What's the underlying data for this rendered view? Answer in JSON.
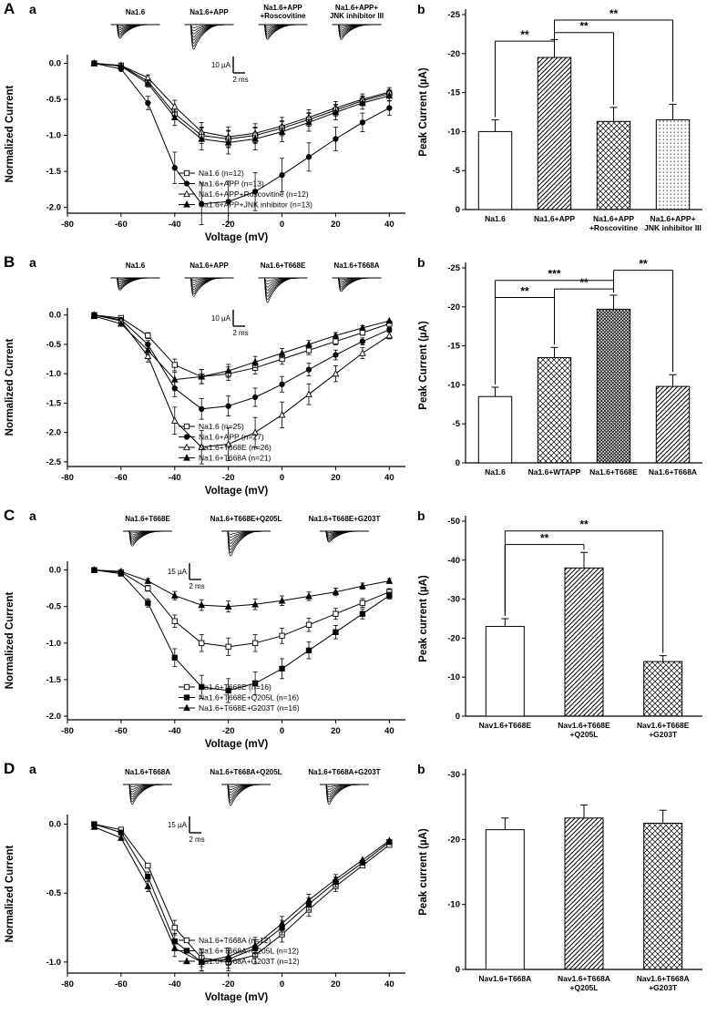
{
  "panels": [
    {
      "label": "A",
      "a_label": "a",
      "b_label": "b"
    },
    {
      "label": "B",
      "a_label": "a",
      "b_label": "b"
    },
    {
      "label": "C",
      "a_label": "a",
      "b_label": "b"
    },
    {
      "label": "D",
      "a_label": "a",
      "b_label": "b"
    }
  ],
  "chart_data": [
    {
      "panel": "A",
      "sub": "a",
      "type": "line",
      "xlabel": "Voltage (mV)",
      "ylabel": "Normalized Current",
      "xlim": [
        -80,
        46
      ],
      "ylim": [
        -2.08,
        0.12
      ],
      "xticks": [
        -80,
        -60,
        -40,
        -20,
        0,
        20,
        40
      ],
      "yticks": [
        0.0,
        -0.5,
        -1.0,
        -1.5,
        -2.0
      ],
      "x": [
        -70,
        -60,
        -50,
        -40,
        -30,
        -20,
        -10,
        0,
        10,
        20,
        30,
        40
      ],
      "series": [
        {
          "name": "Na1.6 (n=12)",
          "marker": "open-square",
          "efrac": 0.1,
          "y": [
            0,
            -0.03,
            -0.25,
            -0.7,
            -1.0,
            -1.05,
            -1.0,
            -0.9,
            -0.78,
            -0.65,
            -0.52,
            -0.42
          ]
        },
        {
          "name": "Na1.6+APP (n=13)",
          "marker": "filled-circle",
          "efrac": 0.14,
          "y": [
            0,
            -0.08,
            -0.55,
            -1.45,
            -1.95,
            -1.92,
            -1.78,
            -1.55,
            -1.3,
            -1.05,
            -0.82,
            -0.62
          ]
        },
        {
          "name": "Na1.6+APP+Roscovitine (n=12)",
          "marker": "open-triangle",
          "efrac": 0.12,
          "y": [
            0,
            -0.03,
            -0.2,
            -0.6,
            -0.95,
            -1.02,
            -0.97,
            -0.87,
            -0.75,
            -0.62,
            -0.5,
            -0.4
          ]
        },
        {
          "name": "Na1.6+APP+JNK inhibitor (n=13)",
          "marker": "filled-triangle",
          "efrac": 0.13,
          "y": [
            0,
            -0.04,
            -0.28,
            -0.75,
            -1.05,
            -1.1,
            -1.05,
            -0.95,
            -0.82,
            -0.68,
            -0.55,
            -0.45
          ]
        }
      ],
      "insets": [
        {
          "label": "Na1.6",
          "amp": 0.55
        },
        {
          "label": "Na1.6+APP",
          "amp": 1.0
        },
        {
          "label": "Na1.6+APP\n+Roscovitine",
          "amp": 0.6
        },
        {
          "label": "Na1.6+APP+\nJNK inhibitor III",
          "amp": 0.6
        }
      ],
      "scalebar": {
        "v": "10 µA",
        "h": "2 ms"
      }
    },
    {
      "panel": "A",
      "sub": "b",
      "type": "bar",
      "ylabel": "Peak Current (µA)",
      "ylim": [
        0,
        -25
      ],
      "yticks": [
        -25,
        -20,
        -15,
        -10,
        -5,
        0
      ],
      "categories": [
        "Na1.6",
        "Na1.6+APP",
        "Na1.6+APP\n+Roscovitine",
        "Na1.6+APP+\nJNK inhibitor III"
      ],
      "values": [
        -10.0,
        -19.5,
        -11.3,
        -11.5
      ],
      "errors": [
        1.5,
        2.3,
        1.8,
        2.0
      ],
      "fills": [
        "white",
        "diag",
        "cross",
        "dots"
      ],
      "sig": [
        {
          "a": 0,
          "b": 1,
          "y": -21.6,
          "label": "**"
        },
        {
          "a": 1,
          "b": 2,
          "y": -22.7,
          "label": "**"
        },
        {
          "a": 1,
          "b": 3,
          "y": -24.3,
          "label": "**"
        }
      ]
    },
    {
      "panel": "B",
      "sub": "a",
      "type": "line",
      "xlabel": "Voltage (mV)",
      "ylabel": "Normalized Current",
      "xlim": [
        -80,
        46
      ],
      "ylim": [
        -2.58,
        0.12
      ],
      "xticks": [
        -80,
        -60,
        -40,
        -20,
        0,
        20,
        40
      ],
      "yticks": [
        0.0,
        -0.5,
        -1.0,
        -1.5,
        -2.0,
        -2.5
      ],
      "x": [
        -70,
        -60,
        -50,
        -40,
        -30,
        -20,
        -10,
        0,
        10,
        20,
        30,
        40
      ],
      "series": [
        {
          "name": "Na1.6 (n=25)",
          "marker": "open-square",
          "efrac": 0.1,
          "y": [
            0,
            -0.05,
            -0.35,
            -0.85,
            -1.05,
            -1.0,
            -0.9,
            -0.75,
            -0.6,
            -0.45,
            -0.3,
            -0.15
          ]
        },
        {
          "name": "Na1.6+APP (n=27)",
          "marker": "filled-circle",
          "efrac": 0.1,
          "y": [
            0,
            -0.08,
            -0.5,
            -1.25,
            -1.6,
            -1.55,
            -1.4,
            -1.18,
            -0.93,
            -0.68,
            -0.45,
            -0.25
          ]
        },
        {
          "name": "Na1.6+T668E (n=26)",
          "marker": "open-triangle",
          "efrac": 0.12,
          "y": [
            0,
            -0.1,
            -0.7,
            -1.8,
            -2.25,
            -2.2,
            -2.0,
            -1.7,
            -1.35,
            -1.0,
            -0.65,
            -0.35
          ]
        },
        {
          "name": "Na1.6+T668A (n=21)",
          "marker": "filled-triangle",
          "efrac": 0.1,
          "y": [
            -0.02,
            -0.15,
            -0.6,
            -1.1,
            -1.05,
            -0.95,
            -0.8,
            -0.65,
            -0.5,
            -0.35,
            -0.22,
            -0.1
          ]
        }
      ],
      "insets": [
        {
          "label": "Na1.6",
          "amp": 0.5
        },
        {
          "label": "Na1.6+APP",
          "amp": 0.75
        },
        {
          "label": "Na1.6+T668E",
          "amp": 1.0
        },
        {
          "label": "Na1.6+T668A",
          "amp": 0.55
        }
      ],
      "scalebar": {
        "v": "10 µA",
        "h": "2 ms"
      }
    },
    {
      "panel": "B",
      "sub": "b",
      "type": "bar",
      "ylabel": "Peak Current (µA)",
      "ylim": [
        0,
        -25
      ],
      "yticks": [
        -25,
        -20,
        -15,
        -10,
        -5,
        0
      ],
      "categories": [
        "Na1.6",
        "Na1.6+WTAPP",
        "Na1.6+T668E",
        "Na1.6+T668A"
      ],
      "values": [
        -8.5,
        -13.5,
        -19.7,
        -9.8
      ],
      "errors": [
        1.2,
        1.3,
        1.8,
        1.5
      ],
      "fills": [
        "white",
        "cross",
        "dense",
        "diag"
      ],
      "sig": [
        {
          "a": 0,
          "b": 1,
          "y": -21.2,
          "label": "**"
        },
        {
          "a": 1,
          "b": 2,
          "y": -22.3,
          "label": "**"
        },
        {
          "a": 0,
          "b": 2,
          "y": -23.4,
          "label": "***"
        },
        {
          "a": 2,
          "b": 3,
          "y": -24.7,
          "label": "**"
        }
      ]
    },
    {
      "panel": "C",
      "sub": "a",
      "type": "line",
      "xlabel": "Voltage (mV)",
      "ylabel": "Normalized Current",
      "xlim": [
        -80,
        46
      ],
      "ylim": [
        -2.05,
        0.12
      ],
      "xticks": [
        -80,
        -60,
        -40,
        -20,
        0,
        20,
        40
      ],
      "yticks": [
        0.0,
        -0.5,
        -1.0,
        -1.5,
        -2.0
      ],
      "x": [
        -70,
        -60,
        -50,
        -40,
        -30,
        -20,
        -10,
        0,
        10,
        20,
        30,
        40
      ],
      "series": [
        {
          "name": "Na1.6+T668E (n=16)",
          "marker": "open-square",
          "efrac": 0.1,
          "y": [
            0,
            -0.03,
            -0.25,
            -0.7,
            -1.0,
            -1.05,
            -1.0,
            -0.9,
            -0.75,
            -0.6,
            -0.45,
            -0.3
          ]
        },
        {
          "name": "Na1.6+T668E+Q205L (n=16)",
          "marker": "filled-square",
          "efrac": 0.09,
          "y": [
            0,
            -0.05,
            -0.45,
            -1.2,
            -1.6,
            -1.65,
            -1.55,
            -1.35,
            -1.1,
            -0.85,
            -0.6,
            -0.35
          ]
        },
        {
          "name": "Na1.6+T668E+G203T (n=16)",
          "marker": "filled-triangle",
          "efrac": 0.12,
          "y": [
            0,
            -0.02,
            -0.15,
            -0.35,
            -0.48,
            -0.5,
            -0.47,
            -0.42,
            -0.36,
            -0.3,
            -0.22,
            -0.15
          ]
        }
      ],
      "insets": [
        {
          "label": "Na1.6+T668E",
          "amp": 0.6
        },
        {
          "label": "Na1.6+T668E+Q205L",
          "amp": 1.0
        },
        {
          "label": "Na1.6+T668E+G203T",
          "amp": 0.45
        }
      ],
      "scalebar": {
        "v": "15 µA",
        "h": "2 ms"
      }
    },
    {
      "panel": "C",
      "sub": "b",
      "type": "bar",
      "ylabel": "Peak current (µA)",
      "ylim": [
        0,
        -50
      ],
      "yticks": [
        -50,
        -40,
        -30,
        -20,
        -10,
        0
      ],
      "categories": [
        "Nav1.6+T668E",
        "Nav1.6+T668E\n+Q205L",
        "Nav1.6+T668E\n+G203T"
      ],
      "values": [
        -23.0,
        -38.0,
        -14.0
      ],
      "errors": [
        2.0,
        4.0,
        1.5
      ],
      "fills": [
        "white",
        "diag",
        "cross"
      ],
      "sig": [
        {
          "a": 0,
          "b": 1,
          "y": -44.0,
          "label": "**"
        },
        {
          "a": 0,
          "b": 2,
          "y": -47.5,
          "label": "**"
        }
      ]
    },
    {
      "panel": "D",
      "sub": "a",
      "type": "line",
      "xlabel": "Voltage (mV)",
      "ylabel": "Normalized Current",
      "xlim": [
        -80,
        46
      ],
      "ylim": [
        -1.08,
        0.07
      ],
      "xticks": [
        -80,
        -60,
        -40,
        -20,
        0,
        20,
        40
      ],
      "yticks": [
        0.0,
        -0.5,
        -1.0
      ],
      "x": [
        -70,
        -60,
        -50,
        -40,
        -30,
        -20,
        -10,
        0,
        10,
        20,
        30,
        40
      ],
      "series": [
        {
          "name": "Na1.6+T668A (n=12)",
          "marker": "open-square",
          "efrac": 0.05,
          "y": [
            0,
            -0.04,
            -0.3,
            -0.75,
            -0.97,
            -1.0,
            -0.95,
            -0.8,
            -0.62,
            -0.45,
            -0.3,
            -0.15
          ]
        },
        {
          "name": "Na1.6+T668A+Q205L (n=12)",
          "marker": "filled-square",
          "efrac": 0.05,
          "y": [
            0,
            -0.06,
            -0.38,
            -0.85,
            -1.0,
            -0.98,
            -0.9,
            -0.75,
            -0.58,
            -0.42,
            -0.28,
            -0.13
          ]
        },
        {
          "name": "Na1.6+T668A+G203T (n=12)",
          "marker": "filled-triangle",
          "efrac": 0.05,
          "y": [
            -0.02,
            -0.1,
            -0.45,
            -0.9,
            -1.0,
            -0.96,
            -0.88,
            -0.72,
            -0.55,
            -0.4,
            -0.26,
            -0.12
          ]
        }
      ],
      "insets": [
        {
          "label": "Na1.6+T668A",
          "amp": 0.8
        },
        {
          "label": "Na1.6+T668A+Q205L",
          "amp": 0.85
        },
        {
          "label": "Na1.6+T668A+G203T",
          "amp": 0.8
        }
      ],
      "scalebar": {
        "v": "15 µA",
        "h": "2 ms"
      }
    },
    {
      "panel": "D",
      "sub": "b",
      "type": "bar",
      "ylabel": "Peak current (µA)",
      "ylim": [
        0,
        -30
      ],
      "yticks": [
        -30,
        -20,
        -10,
        0
      ],
      "categories": [
        "Nav1.6+T668A",
        "Nav1.6+T668A\n+Q205L",
        "Nav1.6+T668A\n+G203T"
      ],
      "values": [
        -21.5,
        -23.3,
        -22.5
      ],
      "errors": [
        1.8,
        2.0,
        2.0
      ],
      "fills": [
        "white",
        "diag",
        "cross"
      ],
      "sig": []
    }
  ]
}
